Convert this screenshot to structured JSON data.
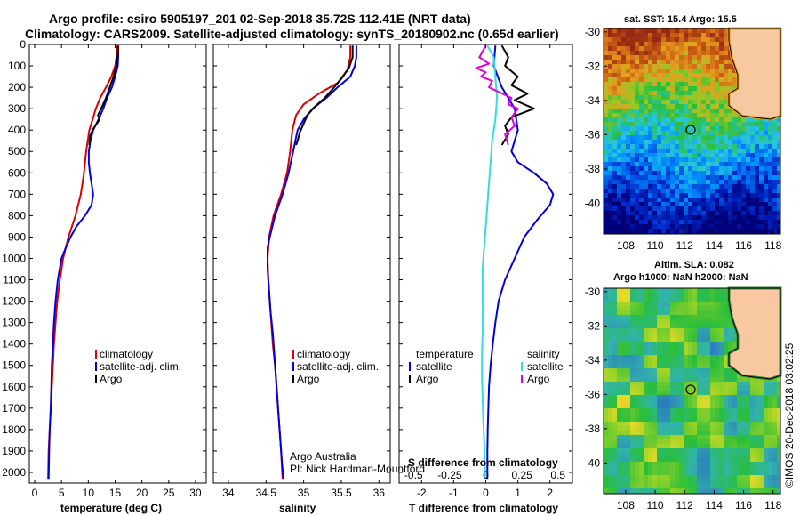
{
  "title": {
    "line1": "Argo profile: csiro 5905197_201 02-Sep-2018 35.72S 112.41E (NRT data)",
    "line2": "Climatology: CARS2009. Satellite-adjusted climatology: synTS_20180902.nc (0.65d earlier)"
  },
  "colors": {
    "climatology": "#dd0000",
    "satellite": "#0000dd",
    "argo": "#000000",
    "sat_salinity": "#33dddd",
    "argo_salinity": "#dd00dd"
  },
  "chart_data": [
    {
      "type": "line",
      "xlabel": "temperature (deg C)",
      "ylabel": "",
      "xlim": [
        -1,
        32
      ],
      "ylim": [
        2050,
        0
      ],
      "xticks": [
        "0",
        "5",
        "10",
        "15",
        "20",
        "25",
        "30"
      ],
      "yticks": [
        "0",
        "100",
        "200",
        "300",
        "400",
        "500",
        "600",
        "700",
        "800",
        "900",
        "1000",
        "1100",
        "1200",
        "1300",
        "1400",
        "1500",
        "1600",
        "1700",
        "1800",
        "1900",
        "2000"
      ],
      "legend": [
        "climatology",
        "satellite-adj. clim.",
        "Argo"
      ],
      "series": [
        {
          "name": "climatology",
          "color": "#dd0000",
          "points": [
            [
              15.3,
              5
            ],
            [
              15.3,
              50
            ],
            [
              15.0,
              100
            ],
            [
              14.3,
              150
            ],
            [
              13.3,
              200
            ],
            [
              12.2,
              250
            ],
            [
              11.4,
              300
            ],
            [
              10.8,
              350
            ],
            [
              10.2,
              400
            ],
            [
              9.9,
              450
            ],
            [
              9.6,
              500
            ],
            [
              9.2,
              600
            ],
            [
              8.6,
              700
            ],
            [
              7.6,
              800
            ],
            [
              6.3,
              900
            ],
            [
              5.3,
              1000
            ],
            [
              4.7,
              1100
            ],
            [
              4.2,
              1200
            ],
            [
              3.9,
              1300
            ],
            [
              3.6,
              1400
            ],
            [
              3.4,
              1500
            ],
            [
              3.2,
              1600
            ],
            [
              3.0,
              1700
            ],
            [
              2.8,
              1800
            ],
            [
              2.6,
              1900
            ],
            [
              2.5,
              2030
            ]
          ]
        },
        {
          "name": "satellite-adj. clim.",
          "color": "#0000dd",
          "points": [
            [
              15.6,
              5
            ],
            [
              15.6,
              50
            ],
            [
              15.5,
              100
            ],
            [
              15.0,
              150
            ],
            [
              14.4,
              200
            ],
            [
              13.5,
              250
            ],
            [
              12.8,
              300
            ],
            [
              11.9,
              350
            ],
            [
              10.9,
              400
            ],
            [
              10.4,
              450
            ],
            [
              10.1,
              500
            ],
            [
              10.1,
              550
            ],
            [
              10.3,
              600
            ],
            [
              10.6,
              650
            ],
            [
              10.9,
              700
            ],
            [
              10.6,
              750
            ],
            [
              9.4,
              800
            ],
            [
              7.8,
              850
            ],
            [
              6.7,
              900
            ],
            [
              5.8,
              950
            ],
            [
              5.0,
              1000
            ],
            [
              4.3,
              1100
            ],
            [
              3.9,
              1200
            ],
            [
              3.6,
              1300
            ],
            [
              3.4,
              1400
            ],
            [
              3.2,
              1500
            ],
            [
              3.1,
              1600
            ],
            [
              3.0,
              1700
            ],
            [
              2.8,
              1800
            ],
            [
              2.7,
              1900
            ],
            [
              2.6,
              2030
            ]
          ]
        },
        {
          "name": "Argo",
          "color": "#000000",
          "points": [
            [
              15.6,
              5
            ],
            [
              15.5,
              50
            ],
            [
              15.2,
              100
            ],
            [
              14.7,
              150
            ],
            [
              14.0,
              200
            ],
            [
              13.3,
              250
            ],
            [
              12.4,
              300
            ],
            [
              11.8,
              330
            ],
            [
              12.1,
              350
            ],
            [
              11.3,
              380
            ],
            [
              10.8,
              400
            ],
            [
              10.3,
              430
            ],
            [
              10.2,
              470
            ]
          ]
        }
      ]
    },
    {
      "type": "line",
      "xlabel": "salinity",
      "ylabel": "",
      "xlim": [
        33.8,
        36.15
      ],
      "ylim": [
        2050,
        0
      ],
      "xticks": [
        "34",
        "34.5",
        "35",
        "35.5",
        "36"
      ],
      "legend": [
        "climatology",
        "satellite-adj. clim.",
        "Argo"
      ],
      "series": [
        {
          "name": "climatology",
          "color": "#dd0000",
          "points": [
            [
              35.62,
              5
            ],
            [
              35.62,
              60
            ],
            [
              35.58,
              120
            ],
            [
              35.45,
              180
            ],
            [
              35.2,
              230
            ],
            [
              35.0,
              280
            ],
            [
              34.9,
              330
            ],
            [
              34.85,
              400
            ],
            [
              34.82,
              500
            ],
            [
              34.78,
              600
            ],
            [
              34.7,
              700
            ],
            [
              34.6,
              800
            ],
            [
              34.54,
              900
            ],
            [
              34.52,
              1000
            ],
            [
              34.53,
              1100
            ],
            [
              34.55,
              1200
            ],
            [
              34.57,
              1300
            ],
            [
              34.59,
              1400
            ],
            [
              34.62,
              1500
            ],
            [
              34.64,
              1600
            ],
            [
              34.66,
              1700
            ],
            [
              34.68,
              1800
            ],
            [
              34.7,
              1900
            ],
            [
              34.72,
              2030
            ]
          ]
        },
        {
          "name": "satellite-adj. clim.",
          "color": "#0000dd",
          "points": [
            [
              35.7,
              5
            ],
            [
              35.7,
              60
            ],
            [
              35.68,
              100
            ],
            [
              35.62,
              150
            ],
            [
              35.45,
              200
            ],
            [
              35.3,
              250
            ],
            [
              35.12,
              300
            ],
            [
              35.0,
              350
            ],
            [
              34.92,
              400
            ],
            [
              34.86,
              500
            ],
            [
              34.8,
              600
            ],
            [
              34.72,
              700
            ],
            [
              34.62,
              800
            ],
            [
              34.55,
              900
            ],
            [
              34.52,
              950
            ],
            [
              34.52,
              1050
            ],
            [
              34.54,
              1150
            ],
            [
              34.56,
              1250
            ],
            [
              34.59,
              1350
            ],
            [
              34.61,
              1450
            ],
            [
              34.63,
              1550
            ],
            [
              34.65,
              1650
            ],
            [
              34.67,
              1750
            ],
            [
              34.69,
              1850
            ],
            [
              34.71,
              1950
            ],
            [
              34.73,
              2030
            ]
          ]
        },
        {
          "name": "Argo",
          "color": "#000000",
          "points": [
            [
              35.65,
              5
            ],
            [
              35.65,
              60
            ],
            [
              35.6,
              110
            ],
            [
              35.5,
              160
            ],
            [
              35.38,
              210
            ],
            [
              35.28,
              250
            ],
            [
              35.15,
              290
            ],
            [
              35.05,
              330
            ],
            [
              35.0,
              370
            ],
            [
              34.95,
              410
            ],
            [
              34.92,
              450
            ],
            [
              34.9,
              470
            ]
          ]
        }
      ]
    },
    {
      "type": "line",
      "xlabel": "T difference from climatology",
      "xlabel2": "S difference from climatology",
      "xlim": [
        -2.7,
        2.7
      ],
      "ylim": [
        2050,
        0
      ],
      "xticks": [
        "-2",
        "-1",
        "0",
        "1",
        "2"
      ],
      "xticks2": [
        "-0.5",
        "-0.25",
        "0",
        "0.25",
        "0.5"
      ],
      "legend_left_title": "temperature",
      "legend_left": [
        "satellite",
        "Argo"
      ],
      "legend_right_title": "salinity",
      "legend_right": [
        "satellite",
        "Argo"
      ],
      "series": [
        {
          "name": "satellite",
          "color": "#0000dd",
          "points": [
            [
              0.3,
              5
            ],
            [
              0.25,
              100
            ],
            [
              0.5,
              200
            ],
            [
              0.9,
              300
            ],
            [
              1.0,
              400
            ],
            [
              0.8,
              500
            ],
            [
              1.0,
              550
            ],
            [
              1.5,
              600
            ],
            [
              1.9,
              650
            ],
            [
              2.1,
              700
            ],
            [
              2.0,
              750
            ],
            [
              1.6,
              820
            ],
            [
              1.2,
              900
            ],
            [
              0.9,
              1000
            ],
            [
              0.6,
              1100
            ],
            [
              0.4,
              1200
            ],
            [
              0.3,
              1300
            ],
            [
              0.22,
              1400
            ],
            [
              0.15,
              1500
            ],
            [
              0.1,
              1600
            ],
            [
              0.08,
              1700
            ],
            [
              0.06,
              1800
            ],
            [
              0.05,
              1900
            ],
            [
              0.05,
              2030
            ]
          ]
        },
        {
          "name": "Argo",
          "color": "#000000",
          "points": [
            [
              0.5,
              5
            ],
            [
              0.7,
              60
            ],
            [
              0.6,
              100
            ],
            [
              1.0,
              150
            ],
            [
              0.8,
              190
            ],
            [
              1.3,
              230
            ],
            [
              0.9,
              260
            ],
            [
              1.5,
              300
            ],
            [
              0.8,
              340
            ],
            [
              0.6,
              380
            ],
            [
              0.7,
              420
            ],
            [
              0.5,
              470
            ]
          ]
        },
        {
          "name": "satellite (S)",
          "color": "#33dddd",
          "points": [
            [
              0.05,
              5
            ],
            [
              0.25,
              60
            ],
            [
              0.3,
              150
            ],
            [
              0.35,
              250
            ],
            [
              0.3,
              350
            ],
            [
              0.2,
              450
            ],
            [
              0.15,
              550
            ],
            [
              0.1,
              650
            ],
            [
              0.05,
              750
            ],
            [
              0.0,
              850
            ],
            [
              -0.05,
              950
            ],
            [
              -0.1,
              1050
            ],
            [
              -0.1,
              1150
            ],
            [
              -0.1,
              1250
            ],
            [
              -0.1,
              1350
            ],
            [
              -0.12,
              1450
            ],
            [
              -0.12,
              1550
            ],
            [
              -0.1,
              1650
            ],
            [
              -0.08,
              1750
            ],
            [
              -0.05,
              1850
            ],
            [
              -0.03,
              1950
            ],
            [
              -0.02,
              2030
            ]
          ]
        },
        {
          "name": "Argo (S)",
          "color": "#dd00dd",
          "points": [
            [
              0.0,
              5
            ],
            [
              -0.2,
              60
            ],
            [
              0.1,
              90
            ],
            [
              -0.3,
              110
            ],
            [
              0.0,
              130
            ],
            [
              -0.15,
              150
            ],
            [
              0.2,
              170
            ],
            [
              0.1,
              200
            ],
            [
              0.8,
              250
            ],
            [
              0.7,
              280
            ],
            [
              1.0,
              300
            ],
            [
              0.8,
              340
            ],
            [
              0.9,
              380
            ],
            [
              0.6,
              420
            ],
            [
              0.7,
              470
            ]
          ]
        }
      ]
    },
    {
      "type": "heatmap",
      "title": "sat. SST: 15.4 Argo: 15.5",
      "xticks": [
        "108",
        "110",
        "112",
        "114",
        "116",
        "118"
      ],
      "yticks": [
        "-30",
        "-32",
        "-34",
        "-36",
        "-38",
        "-40"
      ],
      "xlim": [
        106.5,
        118.5
      ],
      "ylim": [
        -41.8,
        -29.8
      ],
      "marker": [
        112.41,
        -35.72
      ]
    },
    {
      "type": "heatmap",
      "title": "Altim. SLA: 0.082",
      "title2": "Argo h1000: NaN h2000: NaN",
      "xticks": [
        "108",
        "110",
        "112",
        "114",
        "116",
        "118"
      ],
      "yticks": [
        "-30",
        "-32",
        "-34",
        "-36",
        "-38",
        "-40"
      ],
      "xlim": [
        106.5,
        118.5
      ],
      "ylim": [
        -41.8,
        -29.8
      ],
      "marker": [
        112.41,
        -35.72
      ]
    }
  ],
  "credit": {
    "line1": "Argo Australia",
    "line2": "PI: Nick Hardman-Mountford"
  },
  "watermark": "©IMOS 20-Dec-2018 03:02:25"
}
